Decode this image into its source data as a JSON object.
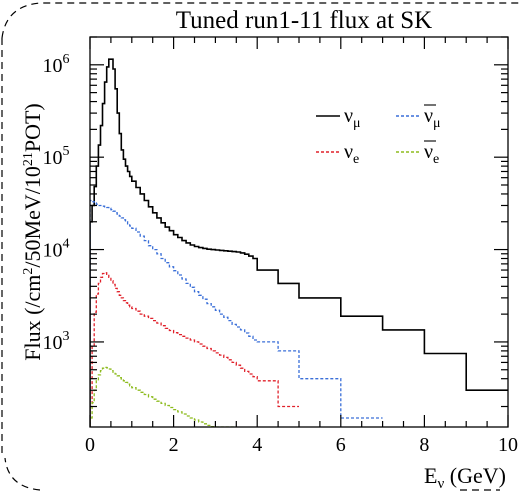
{
  "chart_data": {
    "type": "line",
    "title": "Tuned run1-11 flux at SK",
    "xlabel": "E_ν (GeV)",
    "ylabel": "Flux (/cm²/50MeV/10²¹POT)",
    "x_ticks": [
      "0",
      "2",
      "4",
      "6",
      "8",
      "10"
    ],
    "y_ticks": [
      "10^3",
      "10^4",
      "10^5",
      "10^6"
    ],
    "xlim": [
      0,
      10
    ],
    "ylim": [
      120,
      2000000
    ],
    "y_scale": "log",
    "grid": false,
    "legend_position": "top-right",
    "series": [
      {
        "name": "ν_μ",
        "color": "#000000",
        "dash": "",
        "x": [
          0.0,
          0.05,
          0.1,
          0.15,
          0.2,
          0.25,
          0.3,
          0.35,
          0.4,
          0.45,
          0.5,
          0.55,
          0.6,
          0.65,
          0.7,
          0.75,
          0.8,
          0.85,
          0.9,
          0.95,
          1.0,
          1.1,
          1.2,
          1.3,
          1.4,
          1.5,
          1.6,
          1.7,
          1.8,
          1.9,
          2.0,
          2.1,
          2.2,
          2.3,
          2.4,
          2.5,
          2.6,
          2.7,
          2.8,
          2.9,
          3.0,
          3.1,
          3.2,
          3.3,
          3.4,
          3.5,
          3.6,
          3.7,
          3.8,
          3.9,
          4.0,
          4.5,
          5.0,
          6.0,
          7.0,
          8.0,
          9.0,
          10.0
        ],
        "values": [
          20000,
          30000,
          48000,
          80000,
          135000,
          220000,
          380000,
          650000,
          950000,
          1150000,
          1150000,
          900000,
          550000,
          300000,
          180000,
          120000,
          95000,
          80000,
          70000,
          62000,
          55000,
          47000,
          40000,
          34000,
          29000,
          25000,
          22000,
          19500,
          17500,
          16000,
          14500,
          13500,
          12500,
          11800,
          11200,
          10800,
          10500,
          10300,
          10100,
          10000,
          9900,
          9800,
          9700,
          9600,
          9500,
          9400,
          9200,
          8900,
          8500,
          8000,
          6000,
          4300,
          3000,
          1900,
          1350,
          750,
          300,
          300
        ]
      },
      {
        "name": "ν̄_μ",
        "color": "#3a6fd8",
        "dash": "3 2",
        "x": [
          0.0,
          0.05,
          0.1,
          0.15,
          0.2,
          0.25,
          0.3,
          0.35,
          0.4,
          0.45,
          0.5,
          0.55,
          0.6,
          0.65,
          0.7,
          0.75,
          0.8,
          0.85,
          0.9,
          0.95,
          1.0,
          1.1,
          1.2,
          1.3,
          1.4,
          1.5,
          1.6,
          1.7,
          1.8,
          1.9,
          2.0,
          2.1,
          2.2,
          2.3,
          2.4,
          2.5,
          2.6,
          2.7,
          2.8,
          2.9,
          3.0,
          3.1,
          3.2,
          3.3,
          3.4,
          3.5,
          3.6,
          3.7,
          3.8,
          3.9,
          4.0,
          4.5,
          5.0,
          6.0,
          7.0
        ],
        "values": [
          34000,
          33000,
          32000,
          31000,
          30000,
          30000,
          29500,
          29000,
          28500,
          28000,
          27000,
          26000,
          25000,
          24000,
          23000,
          22000,
          21000,
          20000,
          19000,
          18000,
          17000,
          15500,
          14000,
          12500,
          11000,
          10000,
          9000,
          8000,
          7200,
          6500,
          5900,
          5300,
          4800,
          4300,
          3900,
          3500,
          3200,
          2900,
          2600,
          2400,
          2200,
          2000,
          1850,
          1700,
          1550,
          1450,
          1350,
          1250,
          1150,
          1050,
          1000,
          800,
          400,
          150,
          150
        ]
      },
      {
        "name": "ν_e",
        "color": "#e0202a",
        "dash": "3 2",
        "x": [
          0.0,
          0.05,
          0.1,
          0.15,
          0.2,
          0.25,
          0.3,
          0.35,
          0.4,
          0.45,
          0.5,
          0.55,
          0.6,
          0.65,
          0.7,
          0.75,
          0.8,
          0.85,
          0.9,
          0.95,
          1.0,
          1.1,
          1.2,
          1.3,
          1.4,
          1.5,
          1.6,
          1.7,
          1.8,
          1.9,
          2.0,
          2.1,
          2.2,
          2.3,
          2.4,
          2.5,
          2.6,
          2.7,
          2.8,
          2.9,
          3.0,
          3.1,
          3.2,
          3.3,
          3.4,
          3.5,
          3.6,
          3.7,
          3.8,
          3.9,
          4.0,
          4.5,
          5.0
        ],
        "values": [
          200,
          900,
          2100,
          3300,
          4300,
          5000,
          5500,
          5600,
          5400,
          5000,
          4600,
          4200,
          3800,
          3500,
          3200,
          3000,
          2800,
          2650,
          2500,
          2400,
          2300,
          2150,
          2000,
          1900,
          1800,
          1700,
          1600,
          1500,
          1400,
          1330,
          1260,
          1200,
          1150,
          1100,
          1050,
          1000,
          950,
          900,
          850,
          800,
          760,
          720,
          680,
          640,
          600,
          560,
          520,
          480,
          450,
          420,
          380,
          200,
          150
        ]
      },
      {
        "name": "ν̄_e",
        "color": "#8dbb1e",
        "dash": "3 2",
        "x": [
          0.0,
          0.05,
          0.1,
          0.15,
          0.2,
          0.25,
          0.3,
          0.35,
          0.4,
          0.45,
          0.5,
          0.55,
          0.6,
          0.65,
          0.7,
          0.75,
          0.8,
          0.85,
          0.9,
          0.95,
          1.0,
          1.1,
          1.2,
          1.3,
          1.4,
          1.5,
          1.6,
          1.7,
          1.8,
          1.9,
          2.0,
          2.1,
          2.2,
          2.3,
          2.4,
          2.5,
          2.6,
          2.7,
          2.8,
          2.9,
          3.0,
          3.1,
          3.2,
          3.3,
          3.5
        ],
        "values": [
          150,
          220,
          300,
          380,
          440,
          490,
          520,
          530,
          525,
          510,
          490,
          470,
          450,
          430,
          410,
          395,
          380,
          365,
          350,
          335,
          320,
          300,
          285,
          270,
          255,
          240,
          228,
          216,
          205,
          195,
          185,
          175,
          166,
          158,
          150,
          143,
          136,
          130,
          125,
          121,
          118,
          115,
          112,
          110,
          110
        ]
      }
    ]
  }
}
